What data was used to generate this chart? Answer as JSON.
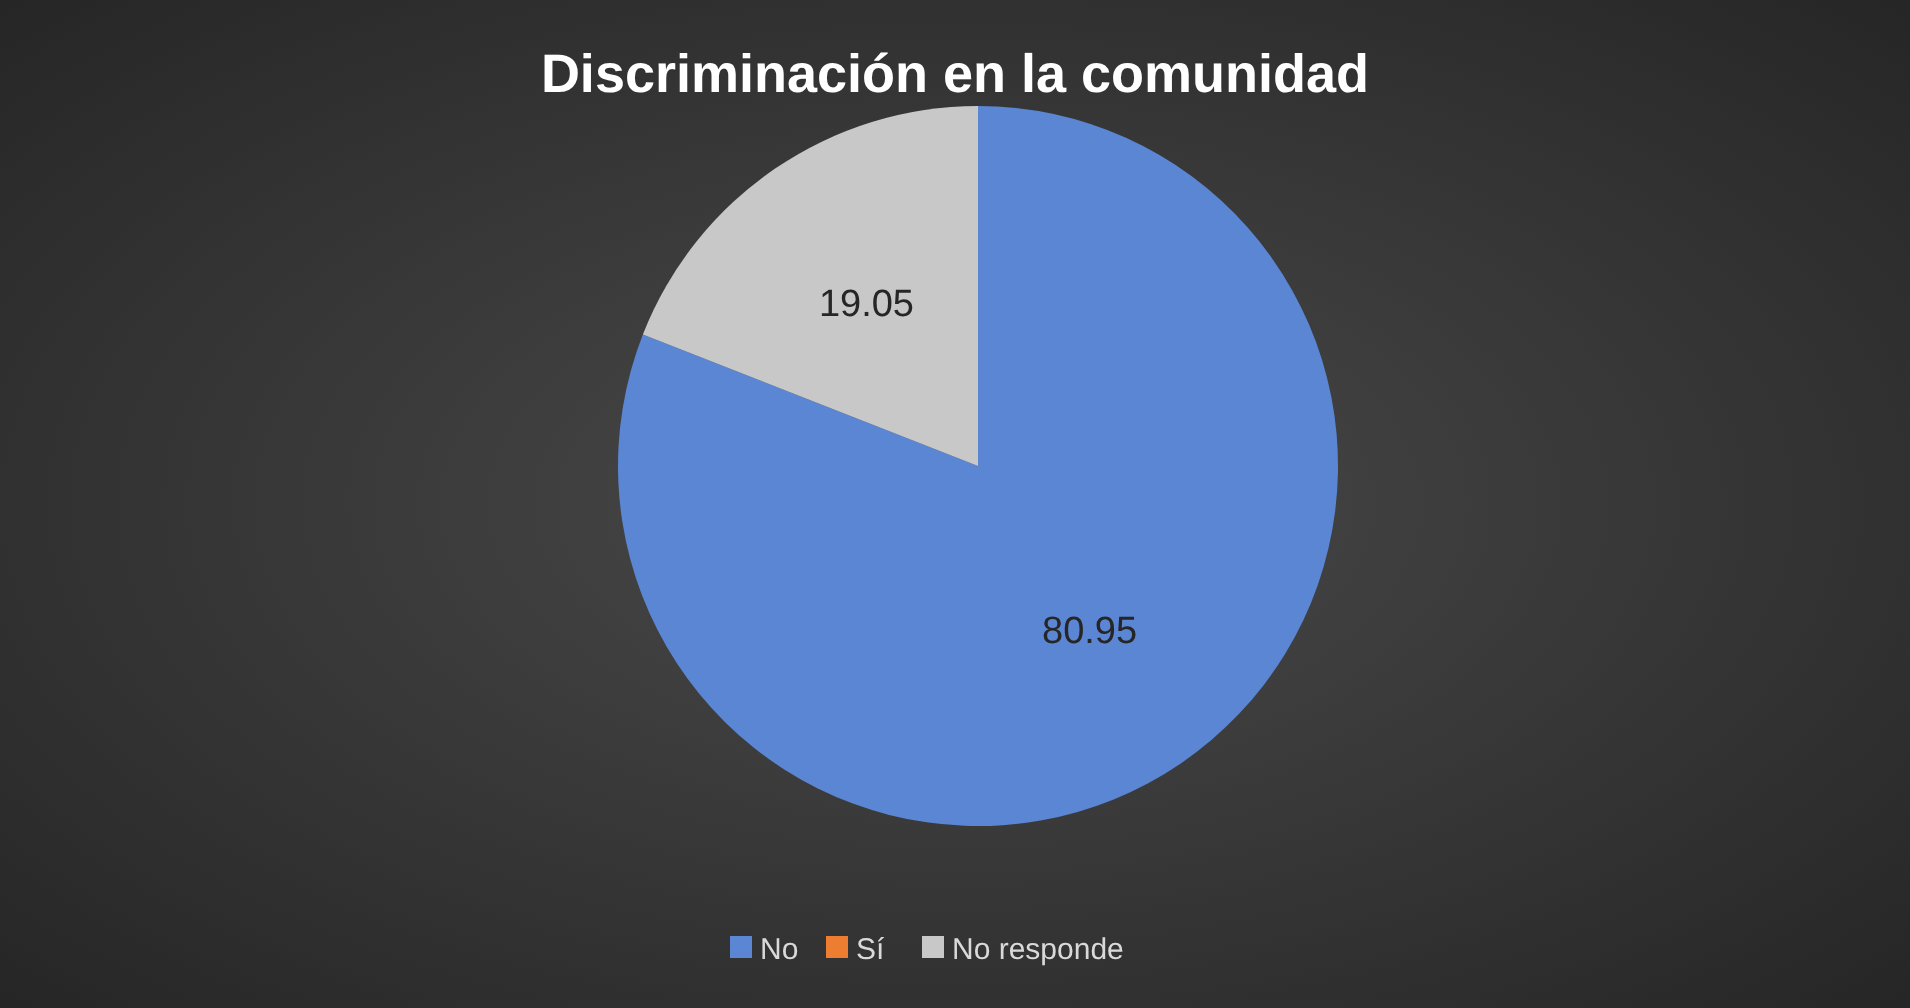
{
  "chart_data": {
    "type": "pie",
    "title": "Discriminación en la comunidad",
    "categories": [
      "No",
      "Sí",
      "No responde"
    ],
    "values": [
      80.95,
      0,
      19.05
    ],
    "colors": [
      "#5b86d4",
      "#ed7d31",
      "#c8c8c8"
    ],
    "value_labels": [
      "80.95",
      null,
      "19.05"
    ],
    "legend": "bottom"
  }
}
